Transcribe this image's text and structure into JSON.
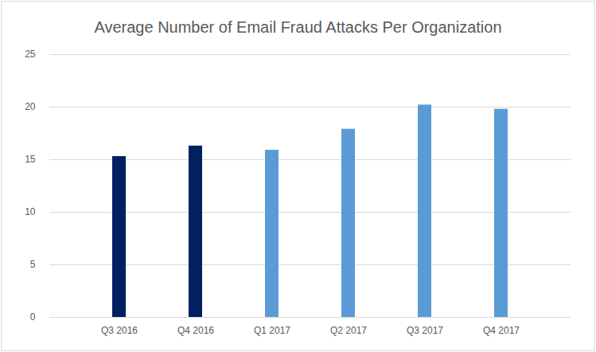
{
  "chart_data": {
    "type": "bar",
    "title": "Average Number of Email Fraud Attacks Per Organization",
    "categories": [
      "Q3 2016",
      "Q4 2016",
      "Q1 2017",
      "Q2 2017",
      "Q3 2017",
      "Q4 2017"
    ],
    "values": [
      15.3,
      16.3,
      15.9,
      17.9,
      20.2,
      19.8
    ],
    "colors": [
      "#002060",
      "#002060",
      "#5b9bd5",
      "#5b9bd5",
      "#5b9bd5",
      "#5b9bd5"
    ],
    "ylim": [
      0,
      25
    ],
    "yticks": [
      0,
      5,
      10,
      15,
      20,
      25
    ],
    "grid": true
  }
}
